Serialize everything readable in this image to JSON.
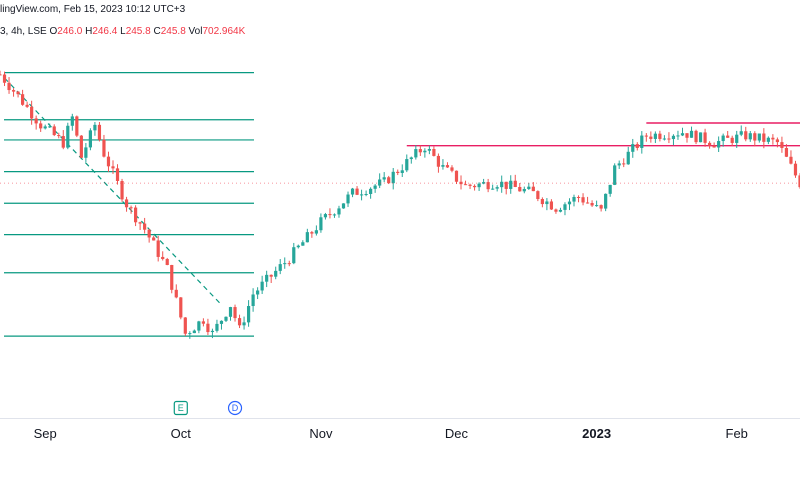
{
  "header": {
    "source": "lingView.com, Feb 15, 2023 10:12 UTC+3",
    "symbol": "3, 4h, LSE",
    "o_label": "O",
    "o_val": "246.0",
    "h_label": "H",
    "h_val": "246.4",
    "l_label": "L",
    "l_val": "245.8",
    "c_label": "C",
    "c_val": "245.8",
    "vol_label": "Vol",
    "vol_val": "702.964K"
  },
  "colors": {
    "up": "#26a69a",
    "down": "#ef5350",
    "fib": "#089981",
    "range": "#e91e63",
    "grid": "#e0e3eb"
  },
  "events": [
    {
      "label": "E",
      "date": "2022-10-01",
      "shape": "square",
      "color": "#089981"
    },
    {
      "label": "D",
      "date": "2022-10-13",
      "shape": "circle",
      "color": "#2962ff"
    }
  ],
  "chart_data": {
    "type": "candlestick",
    "x_ticks": [
      "Sep",
      "Oct",
      "Nov",
      "Dec",
      "2023",
      "Feb"
    ],
    "x_range": [
      "2022-08-22",
      "2023-02-15"
    ],
    "y_range": [
      190,
      280
    ],
    "fib_levels": [
      276.5,
      263.4,
      257.8,
      249.0,
      240.2,
      231.5,
      220.9,
      203.3
    ],
    "trend_line": [
      {
        "date": "2022-08-23",
        "value": 275
      },
      {
        "date": "2022-10-10",
        "value": 212
      }
    ],
    "range_box": {
      "from": "2022-11-20",
      "to": "2023-02-15",
      "top": 262.5,
      "bottom": 256.2
    },
    "last_price": 245.8,
    "path": [
      [
        "2022-08-22",
        276
      ],
      [
        "2022-08-26",
        270
      ],
      [
        "2022-08-31",
        262
      ],
      [
        "2022-09-05",
        257
      ],
      [
        "2022-09-07",
        264
      ],
      [
        "2022-09-09",
        253
      ],
      [
        "2022-09-12",
        262
      ],
      [
        "2022-09-14",
        254
      ],
      [
        "2022-09-19",
        240
      ],
      [
        "2022-09-23",
        233
      ],
      [
        "2022-09-28",
        222
      ],
      [
        "2022-10-02",
        204
      ],
      [
        "2022-10-06",
        208
      ],
      [
        "2022-10-08",
        204
      ],
      [
        "2022-10-12",
        212
      ],
      [
        "2022-10-14",
        205
      ],
      [
        "2022-10-17",
        215
      ],
      [
        "2022-10-25",
        225
      ],
      [
        "2022-11-01",
        235
      ],
      [
        "2022-11-08",
        243
      ],
      [
        "2022-11-15",
        246
      ],
      [
        "2022-11-24",
        256
      ],
      [
        "2022-11-28",
        250
      ],
      [
        "2022-12-03",
        245
      ],
      [
        "2022-12-10",
        246
      ],
      [
        "2022-12-18",
        243
      ],
      [
        "2022-12-23",
        239
      ],
      [
        "2022-12-28",
        242
      ],
      [
        "2023-01-02",
        238
      ],
      [
        "2023-01-05",
        250
      ],
      [
        "2023-01-12",
        259
      ],
      [
        "2023-01-20",
        260
      ],
      [
        "2023-01-27",
        257
      ],
      [
        "2023-02-03",
        259
      ],
      [
        "2023-02-10",
        257
      ],
      [
        "2023-02-15",
        245.8
      ]
    ]
  }
}
